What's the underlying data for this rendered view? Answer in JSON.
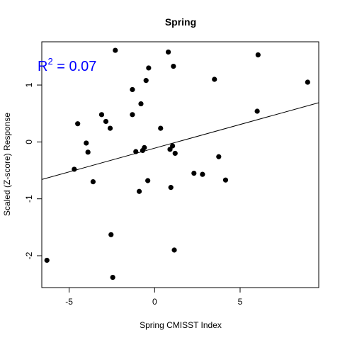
{
  "chart_data": {
    "type": "scatter",
    "title": "Spring",
    "xlabel": "Spring CMISST Index",
    "ylabel": "Scaled (Z-score) Response",
    "xlim": [
      -6.6,
      9.6
    ],
    "ylim": [
      -2.56,
      1.76
    ],
    "x_ticks": [
      -5,
      0,
      5
    ],
    "x_tick_labels": [
      "-5",
      "0",
      "5"
    ],
    "y_ticks": [
      -2,
      -1,
      0,
      1
    ],
    "y_tick_labels": [
      "-2",
      "-1",
      "0",
      "1"
    ],
    "grid": false,
    "annotation": {
      "prefix": "R",
      "superscript": "2",
      "suffix": " = 0.07",
      "color": "#0000ff"
    },
    "fit_line": {
      "intercept": -0.11,
      "slope": 0.0833
    },
    "points": [
      {
        "x": -6.3,
        "y": -2.08
      },
      {
        "x": -4.7,
        "y": -0.48
      },
      {
        "x": -4.5,
        "y": 0.32
      },
      {
        "x": -4.0,
        "y": -0.02
      },
      {
        "x": -3.9,
        "y": -0.18
      },
      {
        "x": -3.6,
        "y": -0.7
      },
      {
        "x": -3.1,
        "y": 0.48
      },
      {
        "x": -2.85,
        "y": 0.36
      },
      {
        "x": -2.6,
        "y": 0.24
      },
      {
        "x": -2.55,
        "y": -1.63
      },
      {
        "x": -2.45,
        "y": -2.38
      },
      {
        "x": -2.3,
        "y": 1.61
      },
      {
        "x": -1.3,
        "y": 0.48
      },
      {
        "x": -1.3,
        "y": 0.92
      },
      {
        "x": -1.1,
        "y": -0.17
      },
      {
        "x": -0.9,
        "y": -0.87
      },
      {
        "x": -0.8,
        "y": 0.67
      },
      {
        "x": -0.7,
        "y": -0.15
      },
      {
        "x": -0.6,
        "y": -0.1
      },
      {
        "x": -0.5,
        "y": 1.08
      },
      {
        "x": -0.4,
        "y": -0.68
      },
      {
        "x": -0.35,
        "y": 1.3
      },
      {
        "x": 0.35,
        "y": 0.24
      },
      {
        "x": 0.8,
        "y": 1.58
      },
      {
        "x": 0.9,
        "y": -0.13
      },
      {
        "x": 0.95,
        "y": -0.8
      },
      {
        "x": 1.05,
        "y": -0.07
      },
      {
        "x": 1.1,
        "y": 1.33
      },
      {
        "x": 1.15,
        "y": -1.9
      },
      {
        "x": 1.2,
        "y": -0.2
      },
      {
        "x": 2.3,
        "y": -0.55
      },
      {
        "x": 2.8,
        "y": -0.57
      },
      {
        "x": 3.5,
        "y": 1.1
      },
      {
        "x": 3.75,
        "y": -0.26
      },
      {
        "x": 4.15,
        "y": -0.67
      },
      {
        "x": 6.0,
        "y": 0.54
      },
      {
        "x": 6.05,
        "y": 1.53
      },
      {
        "x": 8.95,
        "y": 1.05
      }
    ]
  }
}
